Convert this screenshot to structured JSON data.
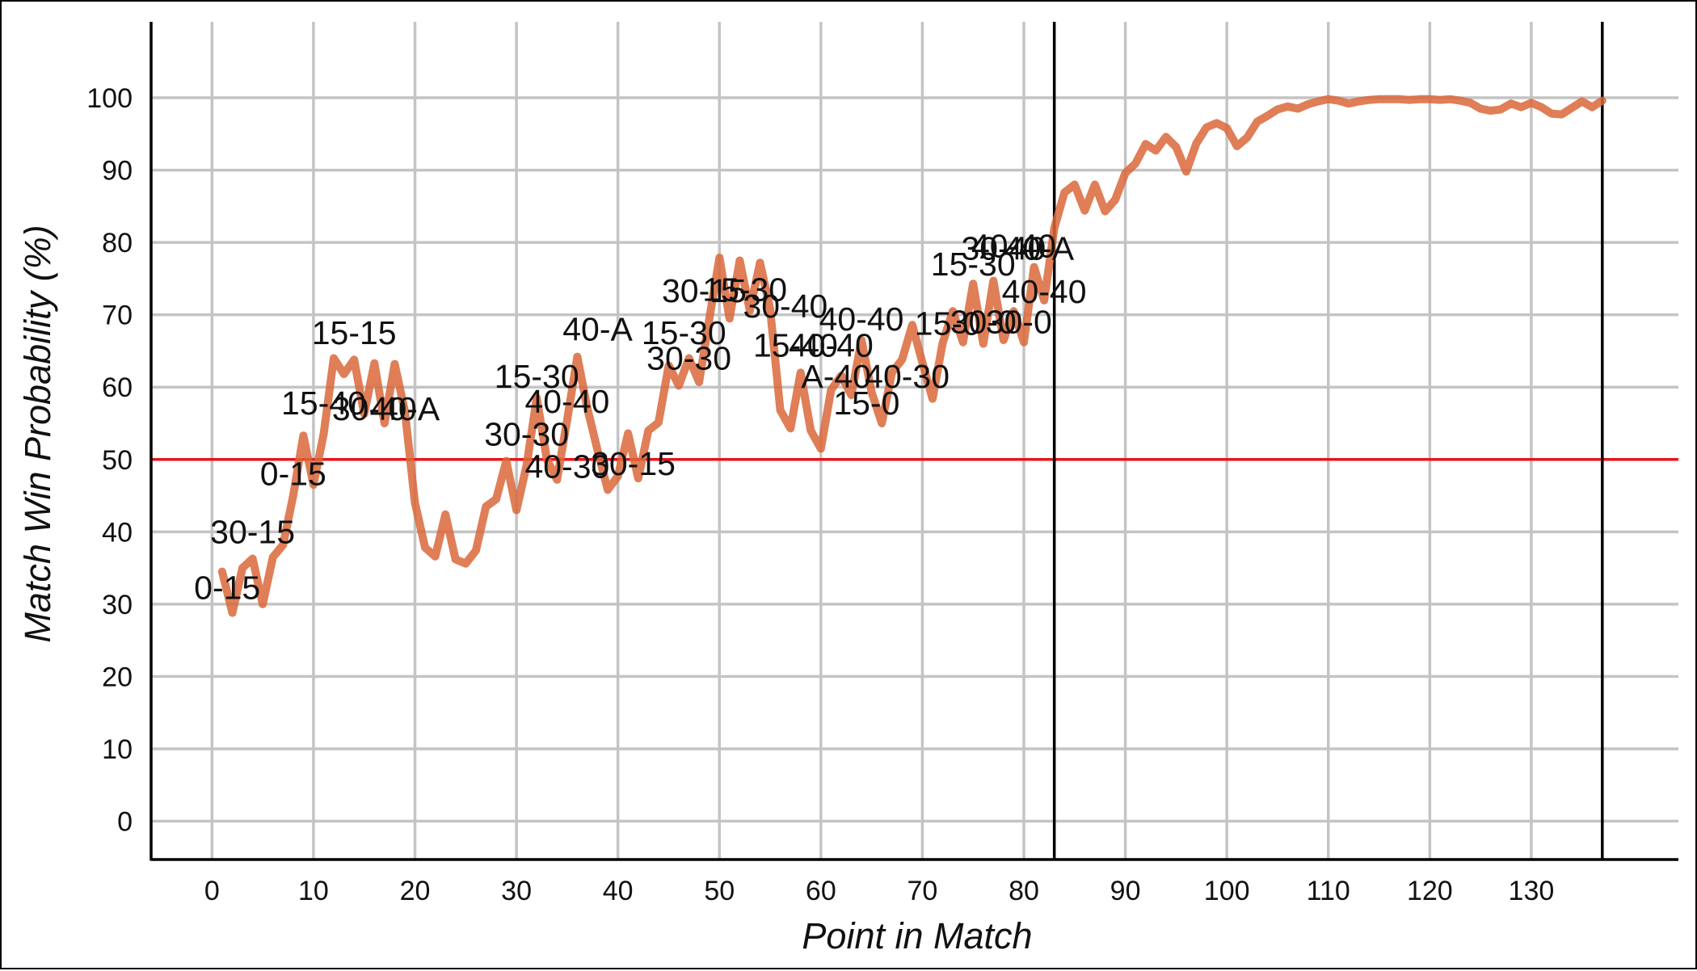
{
  "chart_data": {
    "type": "line",
    "title": "",
    "xlabel": "Point in Match",
    "ylabel": "Match Win Probability (%)",
    "xlim": [
      -6,
      144.5
    ],
    "ylim": [
      -5.3,
      110.5
    ],
    "x_ticks": [
      0,
      10,
      20,
      30,
      40,
      50,
      60,
      70,
      80,
      90,
      100,
      110,
      120,
      130
    ],
    "y_ticks": [
      0,
      10,
      20,
      30,
      40,
      50,
      60,
      70,
      80,
      90,
      100
    ],
    "grid": true,
    "reference_line": {
      "y": 50,
      "color": "#e8141a"
    },
    "vertical_markers": [
      83,
      137
    ],
    "series": [
      {
        "color": "#d9673a",
        "x": [
          1,
          2,
          3,
          4,
          5,
          6,
          7,
          8,
          9,
          10,
          11,
          12,
          13,
          14,
          15,
          16,
          17,
          18,
          19,
          20,
          21,
          22,
          23,
          24,
          25,
          26,
          27,
          28,
          29,
          30,
          31,
          32,
          33,
          34,
          35,
          36,
          37,
          38,
          39,
          40,
          41,
          42,
          43,
          44,
          45,
          46,
          47,
          48,
          49,
          50,
          51,
          52,
          53,
          54,
          55,
          56,
          57,
          58,
          59,
          60,
          61,
          62,
          63,
          64,
          65,
          66,
          67,
          68,
          69,
          70,
          71,
          72,
          73,
          74,
          75,
          76,
          77,
          78,
          79,
          80,
          81,
          82,
          83,
          84,
          85,
          86,
          87,
          88,
          89,
          90,
          91,
          92,
          93,
          94,
          95,
          96,
          97,
          98,
          99,
          100,
          101,
          102,
          103,
          104,
          105,
          106,
          107,
          108,
          109,
          110,
          111,
          112,
          113,
          114,
          115,
          116,
          117,
          118,
          119,
          120,
          121,
          122,
          123,
          124,
          125,
          126,
          127,
          128,
          129,
          130,
          131,
          132,
          133,
          134,
          135,
          136,
          137
        ],
        "y": [
          34.5,
          28.8,
          35.0,
          36.3,
          30.0,
          36.5,
          38.2,
          45.0,
          53.3,
          46.5,
          53.5,
          64.0,
          61.8,
          63.8,
          56.3,
          63.3,
          55.0,
          63.2,
          56.7,
          44.0,
          37.8,
          36.6,
          42.4,
          36.2,
          35.6,
          37.4,
          43.5,
          44.5,
          49.8,
          43.0,
          49.2,
          58.5,
          50.0,
          47.2,
          55.5,
          64.2,
          57.0,
          51.2,
          45.8,
          47.7,
          53.6,
          47.4,
          54.0,
          55.1,
          63.0,
          60.2,
          64.0,
          60.7,
          69.4,
          77.9,
          69.5,
          77.5,
          70.6,
          77.2,
          70.8,
          56.8,
          54.3,
          62.0,
          54.0,
          51.5,
          59.6,
          61.6,
          58.9,
          66.5,
          59.3,
          55.0,
          62.0,
          63.8,
          68.6,
          63.4,
          58.4,
          66.1,
          70.5,
          66.2,
          74.3,
          66.0,
          74.7,
          66.5,
          70.5,
          66.2,
          76.6,
          72.0,
          82.0,
          86.9,
          88.0,
          84.4,
          88.0,
          84.3,
          85.9,
          89.6,
          90.9,
          93.6,
          92.7,
          94.6,
          93.2,
          89.8,
          93.7,
          95.9,
          96.5,
          95.8,
          93.3,
          94.5,
          96.7,
          97.5,
          98.4,
          98.8,
          98.5,
          99.1,
          99.5,
          99.8,
          99.6,
          99.2,
          99.5,
          99.7,
          99.8,
          99.8,
          99.8,
          99.7,
          99.8,
          99.8,
          99.7,
          99.8,
          99.6,
          99.3,
          98.5,
          98.2,
          98.4,
          99.2,
          98.7,
          99.3,
          98.7,
          97.8,
          97.7,
          98.6,
          99.5,
          98.7,
          99.6
        ]
      }
    ],
    "annotations": [
      {
        "text": "0-15",
        "x": 1.5,
        "y": 32.3
      },
      {
        "text": "30-15",
        "x": 4,
        "y": 40
      },
      {
        "text": "0-15",
        "x": 8,
        "y": 48
      },
      {
        "text": "15-40",
        "x": 11,
        "y": 57.8
      },
      {
        "text": "15-15",
        "x": 14,
        "y": 67.5
      },
      {
        "text": "30-40",
        "x": 16,
        "y": 57
      },
      {
        "text": "40-A",
        "x": 19,
        "y": 57
      },
      {
        "text": "15-30",
        "x": 32,
        "y": 61.5
      },
      {
        "text": "40-40",
        "x": 35,
        "y": 58
      },
      {
        "text": "40-A",
        "x": 38,
        "y": 68
      },
      {
        "text": "30-30",
        "x": 31,
        "y": 53.5
      },
      {
        "text": "40-30",
        "x": 35,
        "y": 49
      },
      {
        "text": "30-15",
        "x": 41.5,
        "y": 49.4
      },
      {
        "text": "15-30",
        "x": 46.5,
        "y": 67.5
      },
      {
        "text": "30-30",
        "x": 47,
        "y": 64
      },
      {
        "text": "30-15",
        "x": 48.5,
        "y": 73.3
      },
      {
        "text": "15-30",
        "x": 52.5,
        "y": 73.5
      },
      {
        "text": "30-40",
        "x": 56.5,
        "y": 71.2
      },
      {
        "text": "15-40",
        "x": 57.5,
        "y": 65.8
      },
      {
        "text": "40-40",
        "x": 61,
        "y": 65.8
      },
      {
        "text": "40-40",
        "x": 64,
        "y": 69.4
      },
      {
        "text": "A-40",
        "x": 61.5,
        "y": 61.5
      },
      {
        "text": "40-30",
        "x": 68.5,
        "y": 61.5
      },
      {
        "text": "15-0",
        "x": 64.5,
        "y": 57.8
      },
      {
        "text": "15-0",
        "x": 72.5,
        "y": 68.8
      },
      {
        "text": "30-0",
        "x": 76,
        "y": 69
      },
      {
        "text": "30-0",
        "x": 79.5,
        "y": 69
      },
      {
        "text": "15-30",
        "x": 75,
        "y": 77
      },
      {
        "text": "30-40",
        "x": 78,
        "y": 79.2
      },
      {
        "text": "40-40",
        "x": 79,
        "y": 79.5
      },
      {
        "text": "40-A",
        "x": 81.5,
        "y": 79.2
      },
      {
        "text": "40-40",
        "x": 82,
        "y": 73.2
      }
    ]
  }
}
